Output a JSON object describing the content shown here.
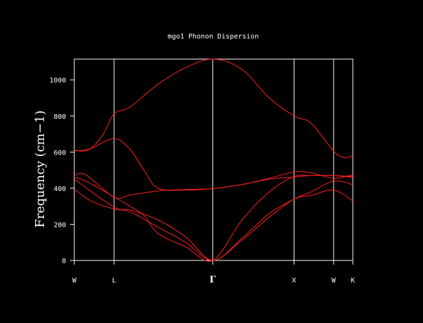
{
  "chart_data": {
    "type": "line",
    "title": "mgo1 Phonon Dispersion",
    "ylabel": "Frequency (cm−1)",
    "xlabel": "",
    "ylim": [
      0,
      1115
    ],
    "yticks": [
      0,
      200,
      400,
      600,
      800,
      1000
    ],
    "xlim": [
      0,
      1
    ],
    "grid": false,
    "legend": "none",
    "colors": {
      "axes": "#ffffff",
      "lines": "#ff2020",
      "background": "#000000"
    },
    "high_symmetry_points": [
      {
        "label": "W",
        "x": 0.0
      },
      {
        "label": "L",
        "x": 0.143
      },
      {
        "label": "Γ",
        "x": 0.497
      },
      {
        "label": "X",
        "x": 0.789
      },
      {
        "label": "W",
        "x": 0.931
      },
      {
        "label": "K",
        "x": 1.0
      }
    ],
    "series": [
      {
        "points": [
          [
            0,
            610
          ],
          [
            0.05,
            612
          ],
          [
            0.1,
            690
          ],
          [
            0.143,
            812
          ],
          [
            0.2,
            850
          ],
          [
            0.3,
            975
          ],
          [
            0.4,
            1068
          ],
          [
            0.497,
            1115
          ],
          [
            0.6,
            1060
          ],
          [
            0.7,
            900
          ],
          [
            0.789,
            800
          ],
          [
            0.85,
            760
          ],
          [
            0.931,
            605
          ],
          [
            0.97,
            570
          ],
          [
            1.0,
            580
          ]
        ]
      },
      {
        "points": [
          [
            0,
            605
          ],
          [
            0.06,
            620
          ],
          [
            0.143,
            675
          ],
          [
            0.2,
            615
          ],
          [
            0.25,
            500
          ],
          [
            0.3,
            400
          ],
          [
            0.4,
            390
          ],
          [
            0.497,
            398
          ],
          [
            0.6,
            420
          ],
          [
            0.7,
            450
          ],
          [
            0.789,
            462
          ],
          [
            0.85,
            470
          ],
          [
            0.931,
            470
          ],
          [
            1.0,
            465
          ]
        ]
      },
      {
        "points": [
          [
            0,
            470
          ],
          [
            0.04,
            475
          ],
          [
            0.143,
            350
          ],
          [
            0.2,
            362
          ],
          [
            0.3,
            385
          ],
          [
            0.4,
            393
          ],
          [
            0.497,
            398
          ],
          [
            0.6,
            420
          ],
          [
            0.7,
            455
          ],
          [
            0.789,
            490
          ],
          [
            0.85,
            485
          ],
          [
            0.931,
            455
          ],
          [
            1.0,
            475
          ]
        ]
      },
      {
        "points": [
          [
            0,
            460
          ],
          [
            0.04,
            440
          ],
          [
            0.143,
            352
          ],
          [
            0.2,
            300
          ],
          [
            0.25,
            250
          ],
          [
            0.3,
            150
          ],
          [
            0.4,
            75
          ],
          [
            0.497,
            0
          ],
          [
            0.6,
            220
          ],
          [
            0.7,
            380
          ],
          [
            0.789,
            465
          ],
          [
            0.85,
            470
          ],
          [
            0.931,
            470
          ],
          [
            1.0,
            460
          ]
        ]
      },
      {
        "points": [
          [
            0,
            450
          ],
          [
            0.143,
            295
          ],
          [
            0.2,
            280
          ],
          [
            0.3,
            225
          ],
          [
            0.4,
            130
          ],
          [
            0.497,
            0
          ],
          [
            0.6,
            120
          ],
          [
            0.7,
            260
          ],
          [
            0.789,
            340
          ],
          [
            0.85,
            380
          ],
          [
            0.931,
            440
          ],
          [
            1.0,
            420
          ]
        ]
      },
      {
        "points": [
          [
            0,
            395
          ],
          [
            0.06,
            330
          ],
          [
            0.143,
            285
          ],
          [
            0.2,
            270
          ],
          [
            0.3,
            185
          ],
          [
            0.4,
            100
          ],
          [
            0.497,
            0
          ],
          [
            0.6,
            110
          ],
          [
            0.7,
            240
          ],
          [
            0.789,
            340
          ],
          [
            0.85,
            360
          ],
          [
            0.931,
            390
          ],
          [
            1.0,
            330
          ]
        ]
      }
    ]
  }
}
